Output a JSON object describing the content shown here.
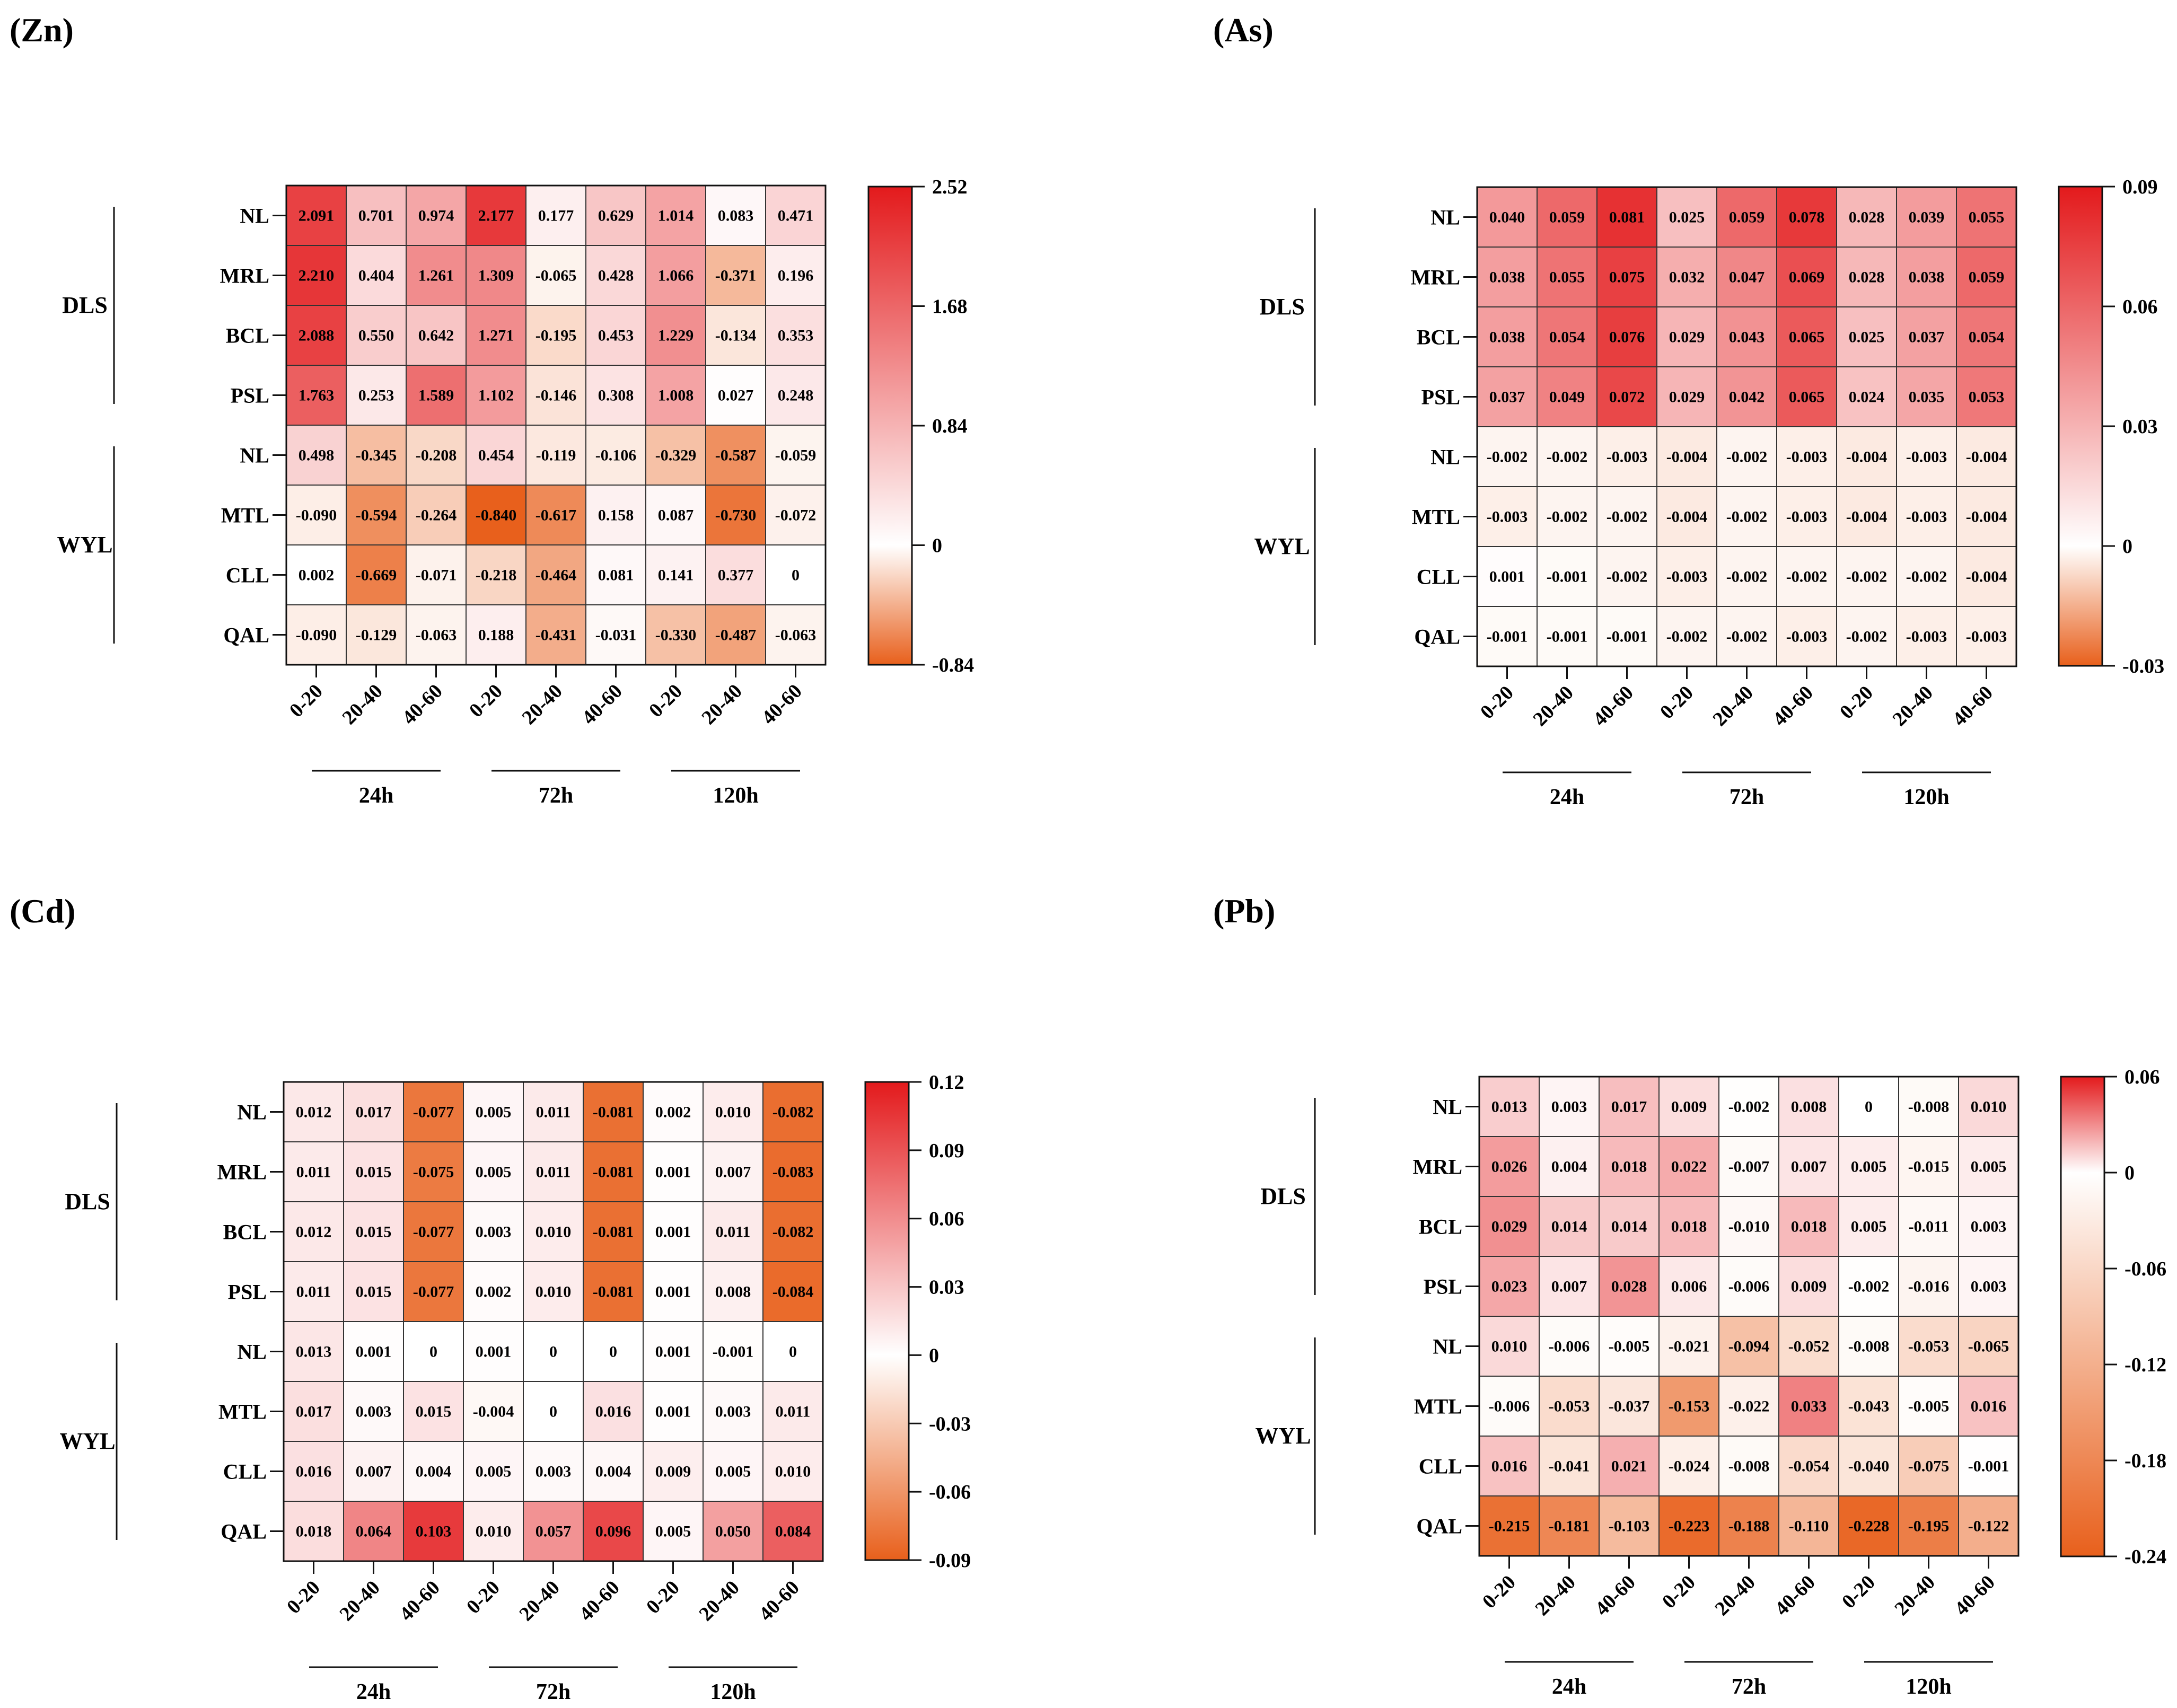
{
  "chart_data": [
    {
      "type": "heatmap",
      "title": "(Zn)",
      "groups": [
        "DLS",
        "WYL"
      ],
      "rows": [
        "NL",
        "MRL",
        "BCL",
        "PSL",
        "NL",
        "MTL",
        "CLL",
        "QAL"
      ],
      "columns": [
        "0-20",
        "20-40",
        "40-60",
        "0-20",
        "20-40",
        "40-60",
        "0-20",
        "20-40",
        "40-60"
      ],
      "time_groups": [
        "24h",
        "72h",
        "120h"
      ],
      "values": [
        [
          "2.091",
          "0.701",
          "0.974",
          "2.177",
          "0.177",
          "0.629",
          "1.014",
          "0.083",
          "0.471"
        ],
        [
          "2.210",
          "0.404",
          "1.261",
          "1.309",
          "-0.065",
          "0.428",
          "1.066",
          "-0.371",
          "0.196"
        ],
        [
          "2.088",
          "0.550",
          "0.642",
          "1.271",
          "-0.195",
          "0.453",
          "1.229",
          "-0.134",
          "0.353"
        ],
        [
          "1.763",
          "0.253",
          "1.589",
          "1.102",
          "-0.146",
          "0.308",
          "1.008",
          "0.027",
          "0.248"
        ],
        [
          "0.498",
          "-0.345",
          "-0.208",
          "0.454",
          "-0.119",
          "-0.106",
          "-0.329",
          "-0.587",
          "-0.059"
        ],
        [
          "-0.090",
          "-0.594",
          "-0.264",
          "-0.840",
          "-0.617",
          "0.158",
          "0.087",
          "-0.730",
          "-0.072"
        ],
        [
          "0.002",
          "-0.669",
          "-0.071",
          "-0.218",
          "-0.464",
          "0.081",
          "0.141",
          "0.377",
          "0"
        ],
        [
          "-0.090",
          "-0.129",
          "-0.063",
          "0.188",
          "-0.431",
          "-0.031",
          "-0.330",
          "-0.487",
          "-0.063"
        ]
      ],
      "colorbar": {
        "min": -0.84,
        "max": 2.52,
        "ticks": [
          "2.52",
          "1.68",
          "0.84",
          "0",
          "-0.84"
        ]
      },
      "colors": {
        "high": "#e31a1c",
        "mid": "#ffffff",
        "low": "#e8601c"
      }
    },
    {
      "type": "heatmap",
      "title": "(As)",
      "groups": [
        "DLS",
        "WYL"
      ],
      "rows": [
        "NL",
        "MRL",
        "BCL",
        "PSL",
        "NL",
        "MTL",
        "CLL",
        "QAL"
      ],
      "columns": [
        "0-20",
        "20-40",
        "40-60",
        "0-20",
        "20-40",
        "40-60",
        "0-20",
        "20-40",
        "40-60"
      ],
      "time_groups": [
        "24h",
        "72h",
        "120h"
      ],
      "values": [
        [
          "0.040",
          "0.059",
          "0.081",
          "0.025",
          "0.059",
          "0.078",
          "0.028",
          "0.039",
          "0.055"
        ],
        [
          "0.038",
          "0.055",
          "0.075",
          "0.032",
          "0.047",
          "0.069",
          "0.028",
          "0.038",
          "0.059"
        ],
        [
          "0.038",
          "0.054",
          "0.076",
          "0.029",
          "0.043",
          "0.065",
          "0.025",
          "0.037",
          "0.054"
        ],
        [
          "0.037",
          "0.049",
          "0.072",
          "0.029",
          "0.042",
          "0.065",
          "0.024",
          "0.035",
          "0.053"
        ],
        [
          "-0.002",
          "-0.002",
          "-0.003",
          "-0.004",
          "-0.002",
          "-0.003",
          "-0.004",
          "-0.003",
          "-0.004"
        ],
        [
          "-0.003",
          "-0.002",
          "-0.002",
          "-0.004",
          "-0.002",
          "-0.003",
          "-0.004",
          "-0.003",
          "-0.004"
        ],
        [
          "0.001",
          "-0.001",
          "-0.002",
          "-0.003",
          "-0.002",
          "-0.002",
          "-0.002",
          "-0.002",
          "-0.004"
        ],
        [
          "-0.001",
          "-0.001",
          "-0.001",
          "-0.002",
          "-0.002",
          "-0.003",
          "-0.002",
          "-0.003",
          "-0.003"
        ]
      ],
      "colorbar": {
        "min": -0.03,
        "max": 0.09,
        "ticks": [
          "0.09",
          "0.06",
          "0.03",
          "0",
          "-0.03"
        ]
      },
      "colors": {
        "high": "#e31a1c",
        "mid": "#ffffff",
        "low": "#e8601c"
      }
    },
    {
      "type": "heatmap",
      "title": "(Cd)",
      "groups": [
        "DLS",
        "WYL"
      ],
      "rows": [
        "NL",
        "MRL",
        "BCL",
        "PSL",
        "NL",
        "MTL",
        "CLL",
        "QAL"
      ],
      "columns": [
        "0-20",
        "20-40",
        "40-60",
        "0-20",
        "20-40",
        "40-60",
        "0-20",
        "20-40",
        "40-60"
      ],
      "time_groups": [
        "24h",
        "72h",
        "120h"
      ],
      "values": [
        [
          "0.012",
          "0.017",
          "-0.077",
          "0.005",
          "0.011",
          "-0.081",
          "0.002",
          "0.010",
          "-0.082"
        ],
        [
          "0.011",
          "0.015",
          "-0.075",
          "0.005",
          "0.011",
          "-0.081",
          "0.001",
          "0.007",
          "-0.083"
        ],
        [
          "0.012",
          "0.015",
          "-0.077",
          "0.003",
          "0.010",
          "-0.081",
          "0.001",
          "0.011",
          "-0.082"
        ],
        [
          "0.011",
          "0.015",
          "-0.077",
          "0.002",
          "0.010",
          "-0.081",
          "0.001",
          "0.008",
          "-0.084"
        ],
        [
          "0.013",
          "0.001",
          "0",
          "0.001",
          "0",
          "0",
          "0.001",
          "-0.001",
          "0"
        ],
        [
          "0.017",
          "0.003",
          "0.015",
          "-0.004",
          "0",
          "0.016",
          "0.001",
          "0.003",
          "0.011"
        ],
        [
          "0.016",
          "0.007",
          "0.004",
          "0.005",
          "0.003",
          "0.004",
          "0.009",
          "0.005",
          "0.010"
        ],
        [
          "0.018",
          "0.064",
          "0.103",
          "0.010",
          "0.057",
          "0.096",
          "0.005",
          "0.050",
          "0.084"
        ]
      ],
      "colorbar": {
        "min": -0.09,
        "max": 0.12,
        "ticks": [
          "0.12",
          "0.09",
          "0.06",
          "0.03",
          "0",
          "-0.03",
          "-0.06",
          "-0.09"
        ]
      },
      "colors": {
        "high": "#e31a1c",
        "mid": "#ffffff",
        "low": "#e8601c"
      }
    },
    {
      "type": "heatmap",
      "title": "(Pb)",
      "groups": [
        "DLS",
        "WYL"
      ],
      "rows": [
        "NL",
        "MRL",
        "BCL",
        "PSL",
        "NL",
        "MTL",
        "CLL",
        "QAL"
      ],
      "columns": [
        "0-20",
        "20-40",
        "40-60",
        "0-20",
        "20-40",
        "40-60",
        "0-20",
        "20-40",
        "40-60"
      ],
      "time_groups": [
        "24h",
        "72h",
        "120h"
      ],
      "values": [
        [
          "0.013",
          "0.003",
          "0.017",
          "0.009",
          "-0.002",
          "0.008",
          "0",
          "-0.008",
          "0.010"
        ],
        [
          "0.026",
          "0.004",
          "0.018",
          "0.022",
          "-0.007",
          "0.007",
          "0.005",
          "-0.015",
          "0.005"
        ],
        [
          "0.029",
          "0.014",
          "0.014",
          "0.018",
          "-0.010",
          "0.018",
          "0.005",
          "-0.011",
          "0.003"
        ],
        [
          "0.023",
          "0.007",
          "0.028",
          "0.006",
          "-0.006",
          "0.009",
          "-0.002",
          "-0.016",
          "0.003"
        ],
        [
          "0.010",
          "-0.006",
          "-0.005",
          "-0.021",
          "-0.094",
          "-0.052",
          "-0.008",
          "-0.053",
          "-0.065"
        ],
        [
          "-0.006",
          "-0.053",
          "-0.037",
          "-0.153",
          "-0.022",
          "0.033",
          "-0.043",
          "-0.005",
          "0.016"
        ],
        [
          "0.016",
          "-0.041",
          "0.021",
          "-0.024",
          "-0.008",
          "-0.054",
          "-0.040",
          "-0.075",
          "-0.001"
        ],
        [
          "-0.215",
          "-0.181",
          "-0.103",
          "-0.223",
          "-0.188",
          "-0.110",
          "-0.228",
          "-0.195",
          "-0.122"
        ]
      ],
      "colorbar": {
        "min": -0.24,
        "max": 0.06,
        "ticks": [
          "0.06",
          "0",
          "-0.06",
          "-0.12",
          "-0.18",
          "-0.24"
        ]
      },
      "colors": {
        "high": "#e31a1c",
        "mid": "#ffffff",
        "low": "#e8601c"
      }
    }
  ]
}
